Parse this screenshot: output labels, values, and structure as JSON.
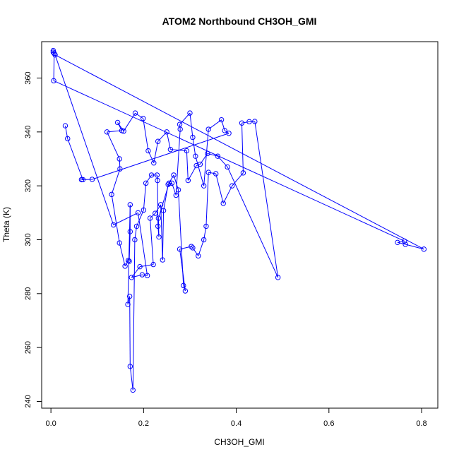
{
  "chart_data": {
    "type": "scatter",
    "title": "ATOM2 Northbound CH3OH_GMI",
    "xlabel": "CH3OH_GMI",
    "ylabel": "Theta (K)",
    "xlim": [
      -0.02,
      0.835
    ],
    "ylim": [
      237.5,
      373.5
    ],
    "xticks": [
      0.0,
      0.2,
      0.4,
      0.6,
      0.8
    ],
    "xtick_labels": [
      "0.0",
      "0.2",
      "0.4",
      "0.6",
      "0.8"
    ],
    "yticks": [
      240,
      260,
      280,
      300,
      320,
      340,
      360
    ],
    "ytick_labels": [
      "240",
      "260",
      "280",
      "300",
      "320",
      "340",
      "360"
    ],
    "grid": false,
    "connect_points": true,
    "marker": "open-circle",
    "color": "#0000ff",
    "series": [
      {
        "values": [
          [
            0.005,
            370.2
          ],
          [
            0.005,
            369.6
          ],
          [
            0.007,
            369.2
          ],
          [
            0.006,
            359.0
          ],
          [
            0.763,
            299.5
          ],
          [
            0.748,
            299.0
          ],
          [
            0.765,
            298.3
          ],
          [
            0.805,
            296.5
          ],
          [
            0.009,
            368.6
          ],
          [
            0.135,
            305.5
          ],
          [
            0.188,
            310.0
          ],
          [
            0.208,
            286.7
          ],
          [
            0.197,
            287.0
          ],
          [
            0.174,
            286.0
          ],
          [
            0.192,
            290.0
          ],
          [
            0.221,
            290.8
          ],
          [
            0.214,
            308.0
          ],
          [
            0.225,
            309.8
          ],
          [
            0.237,
            313.0
          ],
          [
            0.241,
            292.5
          ],
          [
            0.243,
            310.8
          ],
          [
            0.253,
            320.5
          ],
          [
            0.265,
            324.0
          ],
          [
            0.275,
            318.5
          ],
          [
            0.286,
            283.0
          ],
          [
            0.29,
            281.0
          ],
          [
            0.278,
            296.5
          ],
          [
            0.303,
            297.5
          ],
          [
            0.306,
            297.0
          ],
          [
            0.318,
            294.0
          ],
          [
            0.33,
            300.0
          ],
          [
            0.335,
            305.0
          ],
          [
            0.34,
            325.0
          ],
          [
            0.356,
            324.5
          ],
          [
            0.372,
            313.5
          ],
          [
            0.391,
            320.0
          ],
          [
            0.415,
            324.8
          ],
          [
            0.412,
            343.3
          ],
          [
            0.428,
            343.8
          ],
          [
            0.44,
            343.9
          ],
          [
            0.49,
            286.0
          ],
          [
            0.381,
            327.0
          ],
          [
            0.36,
            331.0
          ],
          [
            0.338,
            332.0
          ],
          [
            0.322,
            328.0
          ],
          [
            0.314,
            327.5
          ],
          [
            0.296,
            322.0
          ],
          [
            0.293,
            333.0
          ],
          [
            0.258,
            333.5
          ],
          [
            0.25,
            340.0
          ],
          [
            0.231,
            336.5
          ],
          [
            0.222,
            328.5
          ],
          [
            0.21,
            333.0
          ],
          [
            0.199,
            345.0
          ],
          [
            0.182,
            347.0
          ],
          [
            0.157,
            340.3
          ],
          [
            0.144,
            343.5
          ],
          [
            0.153,
            340.5
          ],
          [
            0.121,
            340.0
          ],
          [
            0.148,
            330.0
          ],
          [
            0.149,
            326.3
          ],
          [
            0.131,
            316.8
          ],
          [
            0.148,
            298.8
          ],
          [
            0.16,
            290.2
          ],
          [
            0.167,
            292.3
          ],
          [
            0.169,
            292.0
          ],
          [
            0.171,
            303.0
          ],
          [
            0.171,
            313.0
          ],
          [
            0.166,
            276.0
          ],
          [
            0.17,
            279.0
          ],
          [
            0.171,
            253.0
          ],
          [
            0.177,
            244.2
          ],
          [
            0.181,
            300.0
          ],
          [
            0.185,
            305.0
          ],
          [
            0.2,
            311.0
          ],
          [
            0.205,
            321.0
          ],
          [
            0.217,
            324.0
          ],
          [
            0.229,
            324.0
          ],
          [
            0.23,
            322.0
          ],
          [
            0.231,
            305.0
          ],
          [
            0.233,
            301.0
          ],
          [
            0.232,
            308.0
          ],
          [
            0.255,
            321.0
          ],
          [
            0.261,
            321.0
          ],
          [
            0.27,
            316.5
          ],
          [
            0.279,
            341.0
          ],
          [
            0.278,
            342.8
          ],
          [
            0.3,
            347.0
          ],
          [
            0.306,
            338.0
          ],
          [
            0.312,
            331.0
          ],
          [
            0.33,
            320.0
          ],
          [
            0.34,
            341.0
          ],
          [
            0.368,
            344.5
          ],
          [
            0.375,
            340.5
          ],
          [
            0.384,
            339.5
          ],
          [
            0.089,
            322.4
          ],
          [
            0.066,
            322.3
          ],
          [
            0.069,
            322.3
          ],
          [
            0.036,
            337.5
          ],
          [
            0.031,
            342.3
          ]
        ]
      }
    ]
  }
}
